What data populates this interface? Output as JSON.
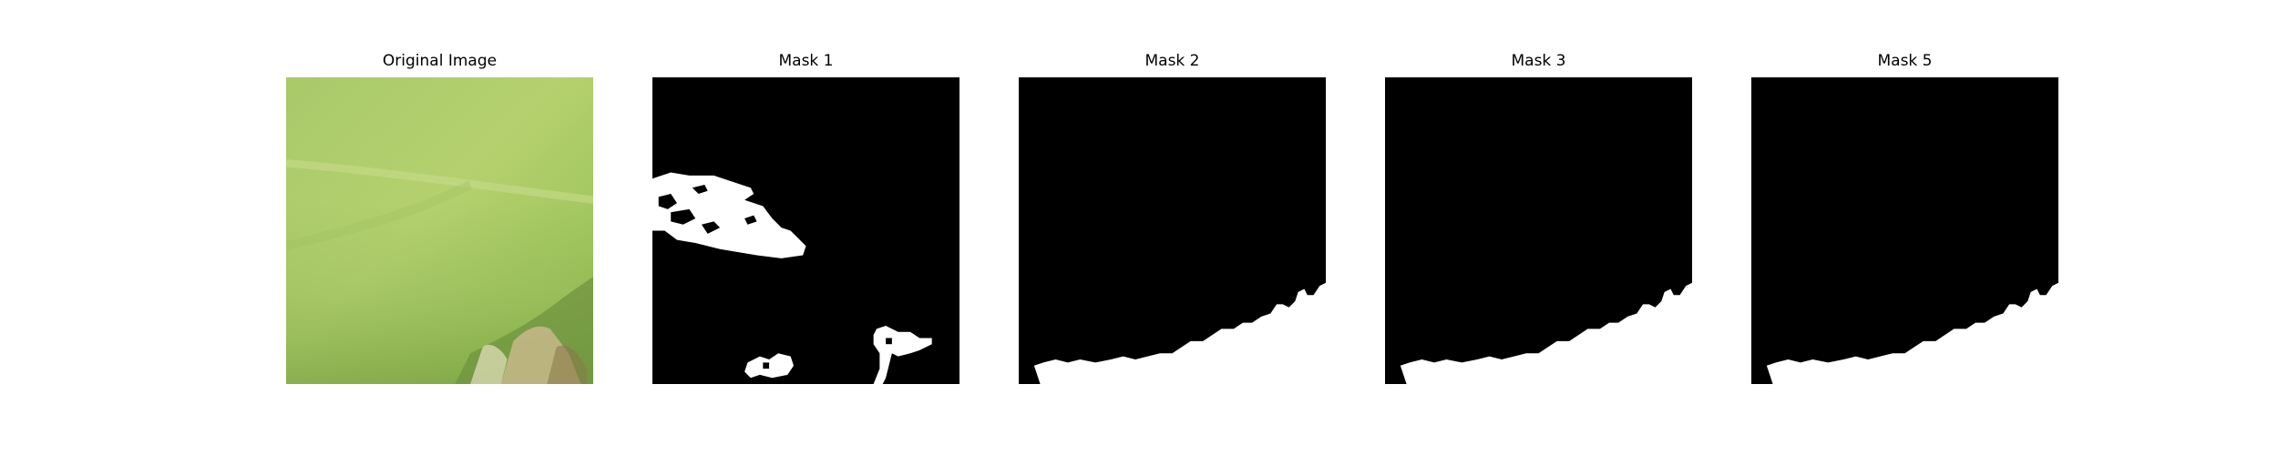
{
  "figure": {
    "panels": [
      {
        "title": "Original Image",
        "kind": "photo"
      },
      {
        "title": "Mask 1",
        "kind": "mask"
      },
      {
        "title": "Mask 2",
        "kind": "mask"
      },
      {
        "title": "Mask 3",
        "kind": "mask"
      },
      {
        "title": "Mask 5",
        "kind": "mask"
      }
    ]
  },
  "colors": {
    "mask_background": "#000000",
    "mask_foreground": "#ffffff",
    "leaf_light": "#b5d16f",
    "leaf_mid": "#9cc257",
    "leaf_dark": "#7fa846"
  }
}
